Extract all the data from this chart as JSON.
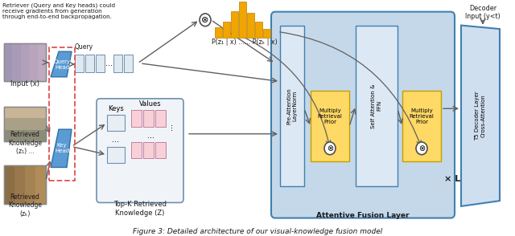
{
  "title": "Figure 3: Detailed architecture of our visual-knowledge fusion model",
  "bg_color": "#ffffff",
  "retriever_text": "Retriever (Query and Key heads) could\nreceive gradients from generation\nthrough end-to-end backpropagation.",
  "multiply_symbol": "⊗",
  "prob_label": "P(z₁ | x) ...... P(zₖ | x)",
  "xl_label": "× L",
  "decoder_input_label": "Decoder\nInput (y<t)",
  "colors": {
    "light_blue_bg": "#b8d4e8",
    "medium_blue": "#5b9bd5",
    "light_orange": "#ffd966",
    "orange_bar": "#f0a500",
    "light_pink": "#f9d0d8",
    "white": "#ffffff",
    "gray_arrow": "#606060",
    "dashed_red": "#e05050",
    "text_dark": "#1a1a1a",
    "query_box": "#e0e8f0",
    "fusion_bg": "#c5d8ea",
    "t5_bg": "#d0dff0",
    "pre_attn_bg": "#dce8f4",
    "topk_bg": "#f0f4f8"
  },
  "bar_heights": [
    12,
    18,
    30,
    40,
    28,
    18,
    10
  ]
}
